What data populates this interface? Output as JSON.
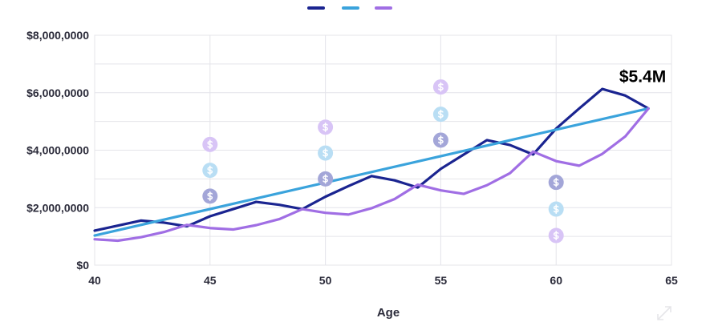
{
  "chart_data": {
    "type": "line",
    "title": "",
    "xlabel": "Age",
    "ylabel": "",
    "xlim": [
      40,
      65
    ],
    "ylim": [
      0,
      8000000
    ],
    "x_ticks": [
      "40",
      "45",
      "50",
      "55",
      "60",
      "65"
    ],
    "x_tick_values": [
      40,
      45,
      50,
      55,
      60,
      65
    ],
    "y_ticks": [
      "$0",
      "$2,000,0000",
      "$4,000,0000",
      "$6,000,0000",
      "$8,000,0000"
    ],
    "y_tick_values": [
      0,
      2000000,
      4000000,
      6000000,
      8000000
    ],
    "grid": true,
    "legend_placement": "top-center",
    "series": [
      {
        "color": "#1a2490",
        "x": [
          40,
          42,
          43,
          44,
          45,
          46,
          47,
          48,
          49,
          50,
          51,
          52,
          53,
          54,
          55,
          56,
          57,
          58,
          59,
          60,
          61,
          62,
          63,
          64
        ],
        "values": [
          1200000,
          1550000,
          1480000,
          1350000,
          1700000,
          1950000,
          2200000,
          2100000,
          1950000,
          2380000,
          2750000,
          3100000,
          2950000,
          2700000,
          3350000,
          3850000,
          4350000,
          4180000,
          3850000,
          4750000,
          5450000,
          6130000,
          5900000,
          5450000
        ]
      },
      {
        "color": "#3aa3dc",
        "x": [
          40,
          64
        ],
        "values": [
          1030000,
          5450000
        ]
      },
      {
        "color": "#a06ee4",
        "x": [
          40,
          41,
          42,
          43,
          44,
          45,
          46,
          47,
          48,
          49,
          50,
          51,
          52,
          53,
          54,
          55,
          56,
          57,
          58,
          59,
          60,
          61,
          62,
          63,
          64
        ],
        "values": [
          900000,
          850000,
          970000,
          1150000,
          1400000,
          1290000,
          1240000,
          1390000,
          1600000,
          1950000,
          1820000,
          1760000,
          1980000,
          2300000,
          2800000,
          2600000,
          2480000,
          2780000,
          3200000,
          3950000,
          3620000,
          3460000,
          3870000,
          4480000,
          5450000
        ]
      }
    ],
    "markers": [
      {
        "x": 45,
        "y": 4200000,
        "color": "#d8c4f6",
        "icon": "dollar-icon"
      },
      {
        "x": 45,
        "y": 3300000,
        "color": "#b9def4",
        "icon": "dollar-icon"
      },
      {
        "x": 45,
        "y": 2400000,
        "color": "#a3a6d8",
        "icon": "dollar-icon"
      },
      {
        "x": 50,
        "y": 4800000,
        "color": "#d8c4f6",
        "icon": "dollar-icon"
      },
      {
        "x": 50,
        "y": 3900000,
        "color": "#b9def4",
        "icon": "dollar-icon"
      },
      {
        "x": 50,
        "y": 3000000,
        "color": "#a3a6d8",
        "icon": "dollar-icon"
      },
      {
        "x": 55,
        "y": 6200000,
        "color": "#d8c4f6",
        "icon": "dollar-icon"
      },
      {
        "x": 55,
        "y": 5250000,
        "color": "#b9def4",
        "icon": "dollar-icon"
      },
      {
        "x": 55,
        "y": 4350000,
        "color": "#a3a6d8",
        "icon": "dollar-icon"
      },
      {
        "x": 60,
        "y": 2880000,
        "color": "#a3a6d8",
        "icon": "dollar-icon"
      },
      {
        "x": 60,
        "y": 1950000,
        "color": "#b9def4",
        "icon": "dollar-icon"
      },
      {
        "x": 60,
        "y": 1030000,
        "color": "#d8c4f6",
        "icon": "dollar-icon"
      }
    ],
    "annotations": [
      {
        "text": "$5.4M",
        "x": 64,
        "y": 5450000
      }
    ]
  },
  "colors": {
    "grid": "#e4e4ea",
    "axis_text": "#2b2b3a"
  },
  "icons": {
    "corner": "expand-icon"
  }
}
